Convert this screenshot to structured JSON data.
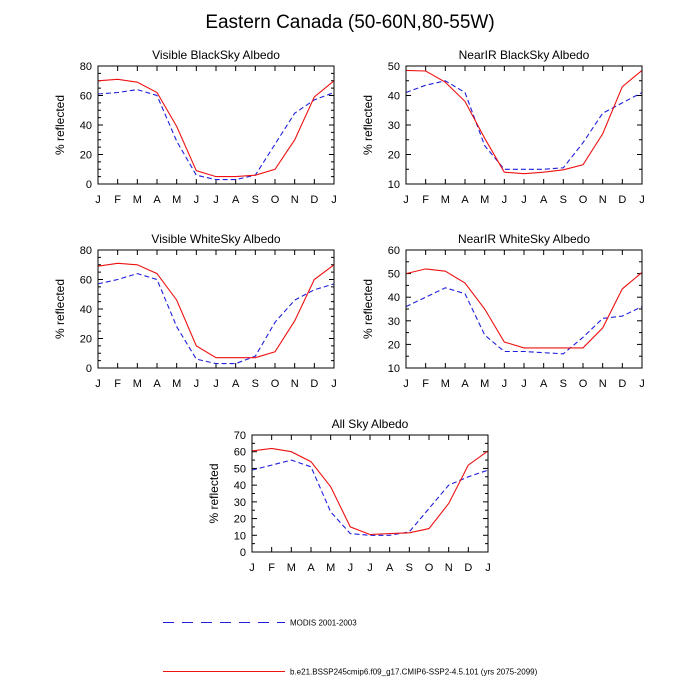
{
  "figure": {
    "title": "Eastern Canada (50-60N,80-55W)"
  },
  "colors": {
    "modis": "#1f1fdd",
    "model": "#ee1111"
  },
  "legend": {
    "modis_label": "MODIS 2001-2003",
    "model_label": "b.e21.BSSP245cmip6.f09_g17.CMIP6-SSP2-4.5.101 (yrs 2075-2099)"
  },
  "chart_data": [
    {
      "type": "line",
      "title": "Visible BlackSky Albedo",
      "xlabel": "",
      "ylabel": "% reflected",
      "categories": [
        "J",
        "F",
        "M",
        "A",
        "M",
        "J",
        "J",
        "A",
        "S",
        "O",
        "N",
        "D",
        "J"
      ],
      "ylim": [
        0,
        80
      ],
      "yticks": [
        0,
        20,
        40,
        60,
        80
      ],
      "series": [
        {
          "name": "MODIS 2001-2003",
          "style": "dashed",
          "color": "#1f1fdd",
          "values": [
            61,
            62,
            64,
            60,
            29,
            6,
            3,
            3,
            6,
            27,
            48,
            57,
            62
          ]
        },
        {
          "name": "b.e21.BSSP245cmip6.f09_g17.CMIP6-SSP2-4.5.101 (yrs 2075-2099)",
          "style": "solid",
          "color": "#ee1111",
          "values": [
            70,
            71,
            69,
            62,
            39,
            9,
            5,
            5,
            6,
            10,
            30,
            59,
            70
          ]
        }
      ]
    },
    {
      "type": "line",
      "title": "NearIR BlackSky Albedo",
      "xlabel": "",
      "ylabel": "% reflected",
      "categories": [
        "J",
        "F",
        "M",
        "A",
        "M",
        "J",
        "J",
        "A",
        "S",
        "O",
        "N",
        "D",
        "J"
      ],
      "ylim": [
        10,
        50
      ],
      "yticks": [
        10,
        20,
        30,
        40,
        50
      ],
      "series": [
        {
          "name": "MODIS 2001-2003",
          "style": "dashed",
          "color": "#1f1fdd",
          "values": [
            41,
            43.5,
            45,
            41,
            23,
            15,
            15,
            15,
            15.5,
            24,
            34,
            37.5,
            41
          ]
        },
        {
          "name": "b.e21.BSSP245cmip6.f09_g17.CMIP6-SSP2-4.5.101 (yrs 2075-2099)",
          "style": "solid",
          "color": "#ee1111",
          "values": [
            48.5,
            48.3,
            44.5,
            38,
            25.5,
            14,
            13.5,
            14,
            14.8,
            16.5,
            27,
            43,
            48.5
          ]
        }
      ]
    },
    {
      "type": "line",
      "title": "Visible WhiteSky Albedo",
      "xlabel": "",
      "ylabel": "% reflected",
      "categories": [
        "J",
        "F",
        "M",
        "A",
        "M",
        "J",
        "J",
        "A",
        "S",
        "O",
        "N",
        "D",
        "J"
      ],
      "ylim": [
        0,
        80
      ],
      "yticks": [
        0,
        20,
        40,
        60,
        80
      ],
      "series": [
        {
          "name": "MODIS 2001-2003",
          "style": "dashed",
          "color": "#1f1fdd",
          "values": [
            57,
            60,
            64,
            60,
            28,
            6,
            3,
            3,
            8,
            31,
            46,
            53,
            57
          ]
        },
        {
          "name": "b.e21.BSSP245cmip6.f09_g17.CMIP6-SSP2-4.5.101 (yrs 2075-2099)",
          "style": "solid",
          "color": "#ee1111",
          "values": [
            69,
            71,
            70,
            64,
            46,
            15,
            7,
            7,
            7,
            11,
            32,
            60,
            70
          ]
        }
      ]
    },
    {
      "type": "line",
      "title": "NearIR WhiteSky Albedo",
      "xlabel": "",
      "ylabel": "% reflected",
      "categories": [
        "J",
        "F",
        "M",
        "A",
        "M",
        "J",
        "J",
        "A",
        "S",
        "O",
        "N",
        "D",
        "J"
      ],
      "ylim": [
        10,
        60
      ],
      "yticks": [
        10,
        20,
        30,
        40,
        50,
        60
      ],
      "series": [
        {
          "name": "MODIS 2001-2003",
          "style": "dashed",
          "color": "#1f1fdd",
          "values": [
            36,
            40,
            44,
            41.5,
            24,
            17,
            17,
            16.5,
            16,
            23,
            31,
            32,
            36
          ]
        },
        {
          "name": "b.e21.BSSP245cmip6.f09_g17.CMIP6-SSP2-4.5.101 (yrs 2075-2099)",
          "style": "solid",
          "color": "#ee1111",
          "values": [
            50,
            52,
            51,
            46,
            35,
            21,
            18.5,
            18.5,
            18.5,
            18.5,
            27,
            43.5,
            50.5
          ]
        }
      ]
    },
    {
      "type": "line",
      "title": "All Sky Albedo",
      "xlabel": "",
      "ylabel": "% reflected",
      "categories": [
        "J",
        "F",
        "M",
        "A",
        "M",
        "J",
        "J",
        "A",
        "S",
        "O",
        "N",
        "D",
        "J"
      ],
      "ylim": [
        0,
        70
      ],
      "yticks": [
        0,
        10,
        20,
        30,
        40,
        50,
        60,
        70
      ],
      "series": [
        {
          "name": "MODIS 2001-2003",
          "style": "dashed",
          "color": "#1f1fdd",
          "values": [
            49,
            52,
            55,
            51,
            24,
            11,
            10,
            10,
            12,
            26,
            40,
            45,
            49
          ]
        },
        {
          "name": "b.e21.BSSP245cmip6.f09_g17.CMIP6-SSP2-4.5.101 (yrs 2075-2099)",
          "style": "solid",
          "color": "#ee1111",
          "values": [
            60.5,
            62,
            60,
            54,
            39,
            15,
            10.5,
            11,
            11.5,
            14,
            29,
            52,
            60.5
          ]
        }
      ]
    }
  ]
}
